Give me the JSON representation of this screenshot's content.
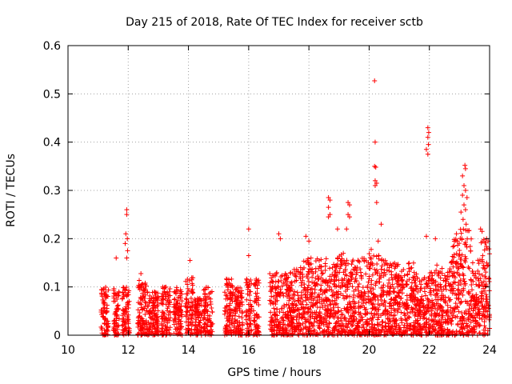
{
  "chart_data": {
    "type": "scatter",
    "title": "Day 215 of 2018, Rate Of TEC Index for receiver sctb",
    "xlabel": "GPS time / hours",
    "ylabel": "ROTI / TECUs",
    "xlim": [
      10,
      24
    ],
    "ylim": [
      0,
      0.6
    ],
    "xticks": [
      10,
      12,
      14,
      16,
      18,
      20,
      22,
      24
    ],
    "yticks": [
      0,
      0.1,
      0.2,
      0.3,
      0.4,
      0.5,
      0.6
    ],
    "xtick_labels": [
      "10",
      "12",
      "14",
      "16",
      "18",
      "20",
      "22",
      "24"
    ],
    "ytick_labels": [
      "0",
      "0.1",
      "0.2",
      "0.3",
      "0.4",
      "0.5",
      "0.6"
    ],
    "grid": true,
    "marker": "+",
    "series_color": "#ff0000",
    "series": [
      {
        "name": "ROTI",
        "outliers": [
          {
            "x": 11.95,
            "y": 0.26
          },
          {
            "x": 11.95,
            "y": 0.25
          },
          {
            "x": 11.92,
            "y": 0.21
          },
          {
            "x": 11.97,
            "y": 0.2
          },
          {
            "x": 11.9,
            "y": 0.19
          },
          {
            "x": 11.98,
            "y": 0.175
          },
          {
            "x": 11.6,
            "y": 0.16
          },
          {
            "x": 11.95,
            "y": 0.16
          },
          {
            "x": 14.05,
            "y": 0.155
          },
          {
            "x": 16.0,
            "y": 0.22
          },
          {
            "x": 16.0,
            "y": 0.165
          },
          {
            "x": 17.0,
            "y": 0.21
          },
          {
            "x": 17.05,
            "y": 0.2
          },
          {
            "x": 17.9,
            "y": 0.205
          },
          {
            "x": 18.0,
            "y": 0.195
          },
          {
            "x": 18.65,
            "y": 0.285
          },
          {
            "x": 18.7,
            "y": 0.28
          },
          {
            "x": 18.65,
            "y": 0.265
          },
          {
            "x": 18.7,
            "y": 0.25
          },
          {
            "x": 18.65,
            "y": 0.245
          },
          {
            "x": 18.95,
            "y": 0.22
          },
          {
            "x": 19.3,
            "y": 0.275
          },
          {
            "x": 19.35,
            "y": 0.27
          },
          {
            "x": 19.3,
            "y": 0.25
          },
          {
            "x": 19.35,
            "y": 0.245
          },
          {
            "x": 19.25,
            "y": 0.22
          },
          {
            "x": 20.18,
            "y": 0.527
          },
          {
            "x": 20.2,
            "y": 0.4
          },
          {
            "x": 20.18,
            "y": 0.35
          },
          {
            "x": 20.22,
            "y": 0.348
          },
          {
            "x": 20.2,
            "y": 0.32
          },
          {
            "x": 20.25,
            "y": 0.315
          },
          {
            "x": 20.2,
            "y": 0.31
          },
          {
            "x": 20.25,
            "y": 0.275
          },
          {
            "x": 20.4,
            "y": 0.23
          },
          {
            "x": 20.3,
            "y": 0.195
          },
          {
            "x": 21.95,
            "y": 0.43
          },
          {
            "x": 21.98,
            "y": 0.42
          },
          {
            "x": 21.95,
            "y": 0.41
          },
          {
            "x": 21.9,
            "y": 0.385
          },
          {
            "x": 21.95,
            "y": 0.375
          },
          {
            "x": 21.97,
            "y": 0.395
          },
          {
            "x": 21.9,
            "y": 0.205
          },
          {
            "x": 22.2,
            "y": 0.2
          },
          {
            "x": 23.18,
            "y": 0.352
          },
          {
            "x": 23.2,
            "y": 0.345
          },
          {
            "x": 23.1,
            "y": 0.33
          },
          {
            "x": 23.15,
            "y": 0.31
          },
          {
            "x": 23.2,
            "y": 0.3
          },
          {
            "x": 23.1,
            "y": 0.29
          },
          {
            "x": 23.25,
            "y": 0.285
          },
          {
            "x": 23.15,
            "y": 0.27
          },
          {
            "x": 23.2,
            "y": 0.26
          },
          {
            "x": 23.05,
            "y": 0.255
          },
          {
            "x": 23.12,
            "y": 0.24
          },
          {
            "x": 23.22,
            "y": 0.23
          },
          {
            "x": 22.9,
            "y": 0.21
          },
          {
            "x": 23.7,
            "y": 0.22
          },
          {
            "x": 23.75,
            "y": 0.215
          },
          {
            "x": 23.9,
            "y": 0.2
          },
          {
            "x": 23.95,
            "y": 0.195
          }
        ],
        "dense_segments": [
          {
            "x_start": 11.1,
            "x_end": 11.35,
            "y_min": 0.0,
            "y_max": 0.1
          },
          {
            "x_start": 11.5,
            "x_end": 11.7,
            "y_min": 0.0,
            "y_max": 0.1
          },
          {
            "x_start": 11.8,
            "x_end": 12.05,
            "y_min": 0.0,
            "y_max": 0.1
          },
          {
            "x_start": 12.3,
            "x_end": 12.6,
            "y_min": 0.0,
            "y_max": 0.13
          },
          {
            "x_start": 12.6,
            "x_end": 13.0,
            "y_min": 0.0,
            "y_max": 0.09
          },
          {
            "x_start": 13.1,
            "x_end": 13.4,
            "y_min": 0.0,
            "y_max": 0.1
          },
          {
            "x_start": 13.5,
            "x_end": 13.8,
            "y_min": 0.0,
            "y_max": 0.1
          },
          {
            "x_start": 13.9,
            "x_end": 14.15,
            "y_min": 0.0,
            "y_max": 0.12
          },
          {
            "x_start": 14.2,
            "x_end": 14.45,
            "y_min": 0.0,
            "y_max": 0.08
          },
          {
            "x_start": 14.5,
            "x_end": 14.8,
            "y_min": 0.0,
            "y_max": 0.1
          },
          {
            "x_start": 15.2,
            "x_end": 15.5,
            "y_min": 0.0,
            "y_max": 0.12
          },
          {
            "x_start": 15.5,
            "x_end": 15.8,
            "y_min": 0.0,
            "y_max": 0.1
          },
          {
            "x_start": 15.9,
            "x_end": 16.1,
            "y_min": 0.0,
            "y_max": 0.12
          },
          {
            "x_start": 16.15,
            "x_end": 16.35,
            "y_min": 0.0,
            "y_max": 0.12
          },
          {
            "x_start": 16.7,
            "x_end": 17.0,
            "y_min": 0.0,
            "y_max": 0.13
          },
          {
            "x_start": 17.0,
            "x_end": 17.4,
            "y_min": 0.0,
            "y_max": 0.13
          },
          {
            "x_start": 17.4,
            "x_end": 17.8,
            "y_min": 0.0,
            "y_max": 0.14
          },
          {
            "x_start": 17.8,
            "x_end": 18.2,
            "y_min": 0.0,
            "y_max": 0.16
          },
          {
            "x_start": 18.2,
            "x_end": 18.6,
            "y_min": 0.0,
            "y_max": 0.16
          },
          {
            "x_start": 18.6,
            "x_end": 18.9,
            "y_min": 0.0,
            "y_max": 0.15
          },
          {
            "x_start": 18.9,
            "x_end": 19.2,
            "y_min": 0.0,
            "y_max": 0.17
          },
          {
            "x_start": 19.2,
            "x_end": 19.6,
            "y_min": 0.0,
            "y_max": 0.16
          },
          {
            "x_start": 19.6,
            "x_end": 20.0,
            "y_min": 0.0,
            "y_max": 0.16
          },
          {
            "x_start": 20.0,
            "x_end": 20.4,
            "y_min": 0.0,
            "y_max": 0.18
          },
          {
            "x_start": 20.4,
            "x_end": 20.8,
            "y_min": 0.0,
            "y_max": 0.16
          },
          {
            "x_start": 20.8,
            "x_end": 21.2,
            "y_min": 0.0,
            "y_max": 0.15
          },
          {
            "x_start": 21.2,
            "x_end": 21.6,
            "y_min": 0.0,
            "y_max": 0.15
          },
          {
            "x_start": 21.6,
            "x_end": 21.95,
            "y_min": 0.0,
            "y_max": 0.12
          },
          {
            "x_start": 21.95,
            "x_end": 22.3,
            "y_min": 0.0,
            "y_max": 0.15
          },
          {
            "x_start": 22.3,
            "x_end": 22.7,
            "y_min": 0.0,
            "y_max": 0.14
          },
          {
            "x_start": 22.7,
            "x_end": 23.0,
            "y_min": 0.0,
            "y_max": 0.2
          },
          {
            "x_start": 23.0,
            "x_end": 23.4,
            "y_min": 0.0,
            "y_max": 0.22
          },
          {
            "x_start": 23.4,
            "x_end": 23.7,
            "y_min": 0.0,
            "y_max": 0.16
          },
          {
            "x_start": 23.7,
            "x_end": 24.0,
            "y_min": 0.0,
            "y_max": 0.2
          }
        ]
      }
    ]
  }
}
